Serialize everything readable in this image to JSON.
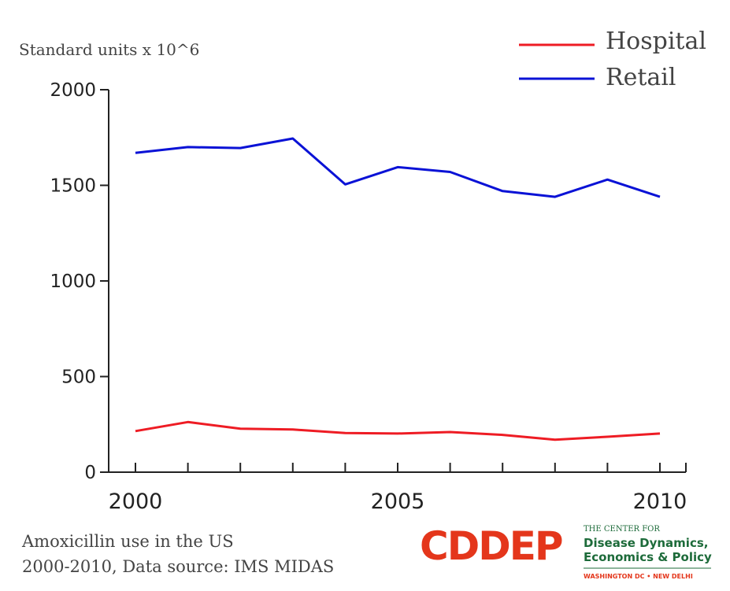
{
  "chart_data": {
    "type": "line",
    "ylabel": "Standard units x 10^6",
    "xlabel": "",
    "x": [
      2000,
      2001,
      2002,
      2003,
      2004,
      2005,
      2006,
      2007,
      2008,
      2009,
      2010
    ],
    "xlim": [
      2000,
      2010
    ],
    "ylim": [
      0,
      2000
    ],
    "xticks": [
      2000,
      2005,
      2010
    ],
    "yticks": [
      0,
      500,
      1000,
      1500,
      2000
    ],
    "grid": false,
    "legend_position": "top-right",
    "series": [
      {
        "name": "Hospital",
        "color": "#ee1c24",
        "values": [
          215,
          262,
          227,
          223,
          205,
          202,
          210,
          195,
          170,
          185,
          202
        ]
      },
      {
        "name": "Retail",
        "color": "#0a12d6",
        "values": [
          1670,
          1700,
          1695,
          1745,
          1505,
          1595,
          1570,
          1470,
          1440,
          1530,
          1440
        ]
      }
    ]
  },
  "caption": {
    "line1": "Amoxicillin use in the US",
    "line2": "2000-2010, Data source: IMS MIDAS"
  },
  "logo": {
    "wordmark": "CDDEP",
    "line1": "THE CENTER FOR",
    "line2": "Disease Dynamics,",
    "line3": "Economics & Policy",
    "line4": "WASHINGTON DC • NEW DELHI",
    "wordmark_color": "#e4361b",
    "text_color": "#1d6b3a"
  }
}
